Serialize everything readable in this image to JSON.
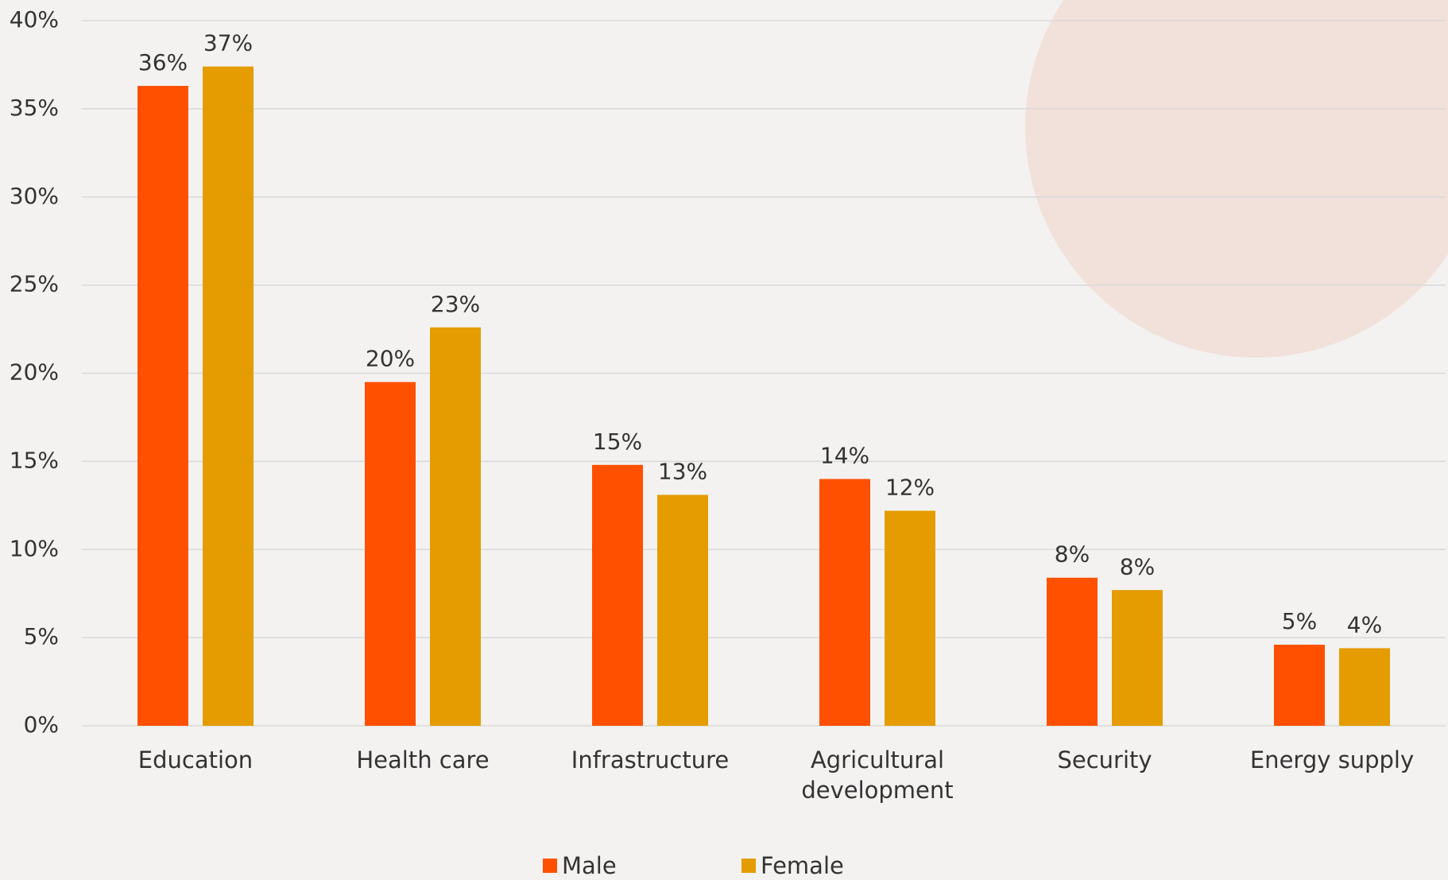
{
  "chart_data": {
    "type": "bar",
    "categories": [
      "Education",
      "Health care",
      "Infrastructure",
      "Agricultural development",
      "Security",
      "Energy supply"
    ],
    "series": [
      {
        "name": "Male",
        "color": "#ff5000",
        "values": [
          36.3,
          19.5,
          14.8,
          14.0,
          8.4,
          4.6
        ],
        "value_labels": [
          "36%",
          "20%",
          "15%",
          "14%",
          "8%",
          "5%"
        ]
      },
      {
        "name": "Female",
        "color": "#e59c00",
        "values": [
          37.4,
          22.6,
          13.1,
          12.2,
          7.7,
          4.4
        ],
        "value_labels": [
          "37%",
          "23%",
          "13%",
          "12%",
          "8%",
          "4%"
        ]
      }
    ],
    "ylim": [
      0,
      40
    ],
    "yticks": [
      {
        "value": 0,
        "label": "0%"
      },
      {
        "value": 5,
        "label": "5%"
      },
      {
        "value": 10,
        "label": "10%"
      },
      {
        "value": 15,
        "label": "15%"
      },
      {
        "value": 20,
        "label": "20%"
      },
      {
        "value": 25,
        "label": "25%"
      },
      {
        "value": 30,
        "label": "30%"
      },
      {
        "value": 35,
        "label": "35%"
      },
      {
        "value": 40,
        "label": "40%"
      }
    ],
    "grid": true,
    "legend": "bottom"
  }
}
